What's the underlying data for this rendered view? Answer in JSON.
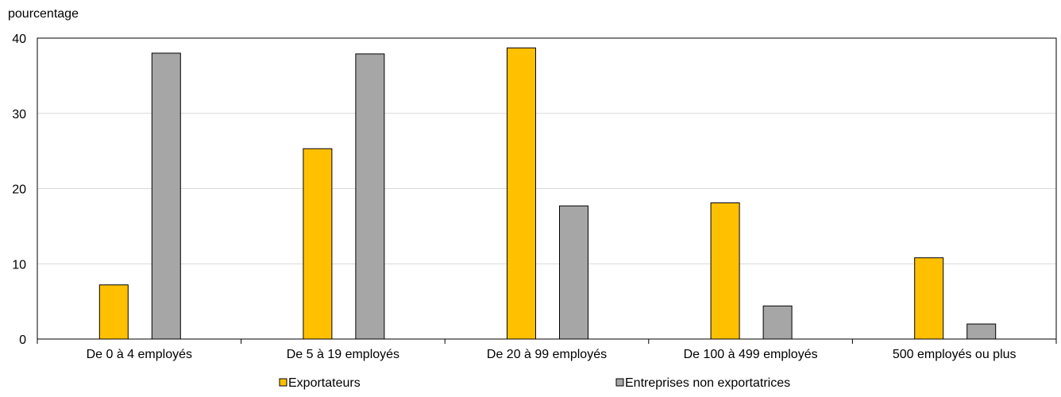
{
  "chart_data": {
    "type": "bar",
    "title": "",
    "ylabel": "pourcentage",
    "xlabel": "",
    "ylim": [
      0,
      40
    ],
    "yticks": [
      0,
      10,
      20,
      30,
      40
    ],
    "grid": true,
    "legend_position": "bottom",
    "categories": [
      "De 0 à 4 employés",
      "De 5 à 19 employés",
      "De 20 à 99 employés",
      "De 100 à 499 employés",
      "500 employés ou plus"
    ],
    "series": [
      {
        "name": "Exportateurs",
        "color": "#FFC000",
        "values": [
          7.2,
          25.3,
          38.7,
          18.1,
          10.8
        ]
      },
      {
        "name": "Entreprises non exportatrices",
        "color": "#A6A6A6",
        "values": [
          38.0,
          37.9,
          17.7,
          4.4,
          2.0
        ]
      }
    ]
  }
}
